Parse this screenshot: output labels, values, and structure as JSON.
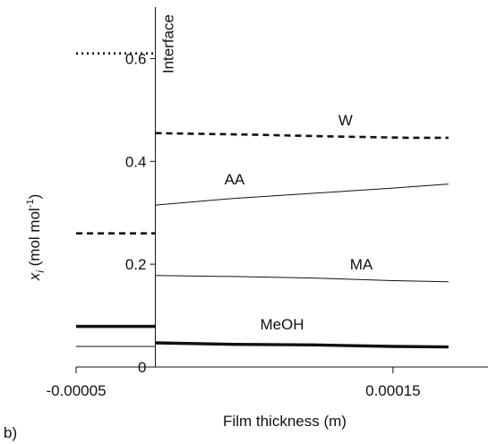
{
  "panel_label": "b)",
  "chart_data": {
    "type": "line",
    "title": "",
    "xlabel": "Film thickness (m)",
    "ylabel": {
      "symbol": "x",
      "subscript": "i",
      "unit_prefix": " (mol mol",
      "unit_sup": "-1",
      "unit_suffix": ")"
    },
    "xlim": [
      -5e-05,
      0.00021
    ],
    "ylim": [
      0,
      0.7
    ],
    "x_ticks": [
      -5e-05,
      0.00015
    ],
    "x_tick_labels": [
      "-0.00005",
      "0.00015"
    ],
    "y_ticks": [
      0,
      0.2,
      0.4,
      0.6
    ],
    "y_tick_labels": [
      "0",
      "0.2",
      "0.4",
      "0.6"
    ],
    "grid": false,
    "legend": "none",
    "interface": {
      "x": 0,
      "label": "Interface"
    },
    "series": [
      {
        "name": "W",
        "style": "dashed",
        "width": "medium",
        "bulk_gas_value": 0.26,
        "points": [
          [
            0,
            0.455
          ],
          [
            6e-05,
            0.452
          ],
          [
            9e-05,
            0.45
          ],
          [
            0.00012,
            0.448
          ],
          [
            0.00016,
            0.446
          ],
          [
            0.000185,
            0.446
          ]
        ],
        "label_at": [
          0.00012,
          0.47
        ]
      },
      {
        "name": "AA",
        "style": "solid",
        "width": "thin",
        "points": [
          [
            0,
            0.315
          ],
          [
            5e-05,
            0.328
          ],
          [
            0.0001,
            0.338
          ],
          [
            0.00015,
            0.348
          ],
          [
            0.000185,
            0.356
          ]
        ],
        "label_at": [
          5e-05,
          0.355
        ]
      },
      {
        "name": "MA",
        "style": "solid",
        "width": "thin",
        "points": [
          [
            0,
            0.178
          ],
          [
            5e-05,
            0.176
          ],
          [
            0.0001,
            0.173
          ],
          [
            0.00015,
            0.168
          ],
          [
            0.000185,
            0.166
          ]
        ],
        "label_at": [
          0.00013,
          0.19
        ]
      },
      {
        "name": "MeOH",
        "style": "solid",
        "width": "thick",
        "bulk_gas_value": 0.079,
        "points": [
          [
            0,
            0.047
          ],
          [
            5e-05,
            0.044
          ],
          [
            0.0001,
            0.043
          ],
          [
            0.00015,
            0.04
          ],
          [
            0.000185,
            0.039
          ]
        ],
        "label_at": [
          8e-05,
          0.073
        ]
      }
    ],
    "left_region_lines": [
      {
        "style": "dotted",
        "width": "medium",
        "value": 0.61
      },
      {
        "style": "solid",
        "width": "thin",
        "value": 0.04
      }
    ]
  },
  "colors": {
    "ink": "#111111"
  }
}
